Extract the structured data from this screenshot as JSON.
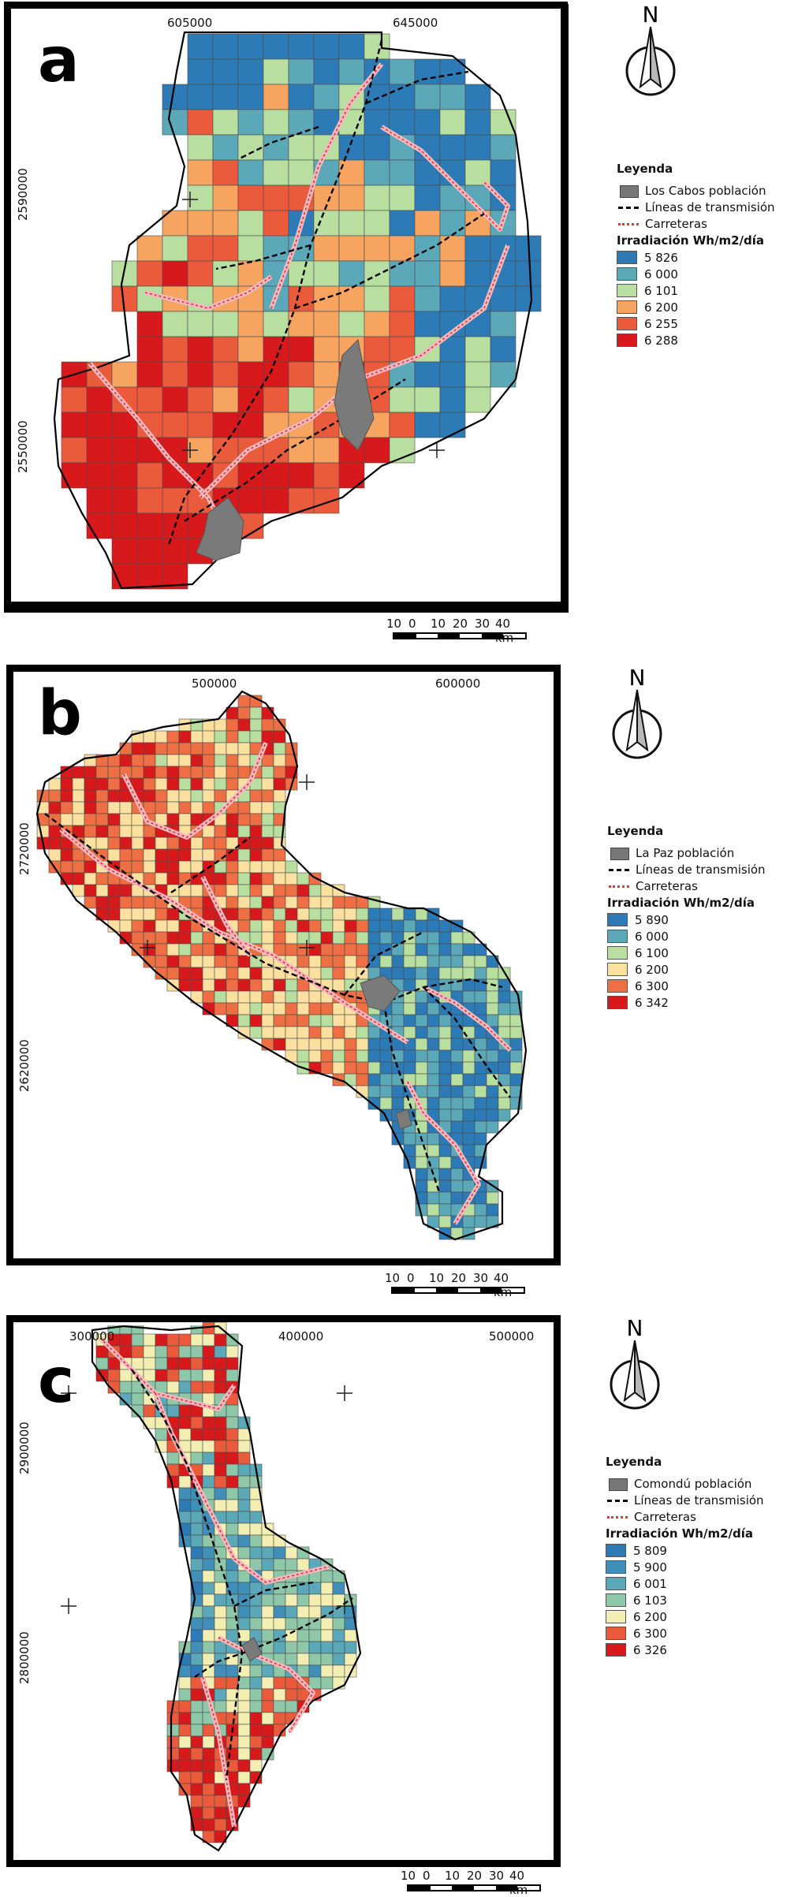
{
  "panels": [
    {
      "letter": "a",
      "top_coords": [
        "605000",
        "645000"
      ],
      "left_coords": [
        "2590000",
        "2550000"
      ],
      "north": "N",
      "legend": {
        "title": "Leyenda",
        "population": "Los Cabos población",
        "lines": "Líneas de transmisión",
        "roads": "Carreteras",
        "irr_title": "Irradiación Wh/m2/día",
        "classes": [
          {
            "label": "5 826",
            "color": "#2c7bb6"
          },
          {
            "label": "6 000",
            "color": "#5aa8b8"
          },
          {
            "label": "6 101",
            "color": "#b9dfa0"
          },
          {
            "label": "6 200",
            "color": "#f6a460"
          },
          {
            "label": "6 255",
            "color": "#ea5b3c"
          },
          {
            "label": "6 288",
            "color": "#d7191c"
          }
        ]
      },
      "scale": [
        "10",
        "0",
        "10",
        "20",
        "30",
        "40 km"
      ]
    },
    {
      "letter": "b",
      "top_coords": [
        "500000",
        "600000"
      ],
      "left_coords": [
        "2720000",
        "2620000"
      ],
      "north": "N",
      "legend": {
        "title": "Leyenda",
        "population": "La Paz población",
        "lines": "Líneas de transmisión",
        "roads": "Carreteras",
        "irr_title": "Irradiación Wh/m2/día",
        "classes": [
          {
            "label": "5 890",
            "color": "#2c7bb6"
          },
          {
            "label": "6 000",
            "color": "#5aa8b8"
          },
          {
            "label": "6 100",
            "color": "#b9dfa0"
          },
          {
            "label": "6 200",
            "color": "#fbe0a0"
          },
          {
            "label": "6 300",
            "color": "#ef6f45"
          },
          {
            "label": "6 342",
            "color": "#d7191c"
          }
        ]
      },
      "scale": [
        "10",
        "0",
        "10",
        "20",
        "30",
        "40 km"
      ]
    },
    {
      "letter": "c",
      "top_coords": [
        "300000",
        "400000",
        "500000"
      ],
      "left_coords": [
        "2900000",
        "2800000"
      ],
      "north": "N",
      "legend": {
        "title": "Leyenda",
        "population": "Comondú población",
        "lines": "Líneas de transmisión",
        "roads": "Carreteras",
        "irr_title": "Irradiación Wh/m2/día",
        "classes": [
          {
            "label": "5 809",
            "color": "#2c7bb6"
          },
          {
            "label": "5 900",
            "color": "#3f8fb8"
          },
          {
            "label": "6 001",
            "color": "#5aa8b8"
          },
          {
            "label": "6 103",
            "color": "#8fc8a8"
          },
          {
            "label": "6 200",
            "color": "#f3efb3"
          },
          {
            "label": "6 300",
            "color": "#ea5b3c"
          },
          {
            "label": "6 326",
            "color": "#d7191c"
          }
        ]
      },
      "scale": [
        "10",
        "0",
        "10",
        "20",
        "30",
        "40 km"
      ]
    }
  ]
}
